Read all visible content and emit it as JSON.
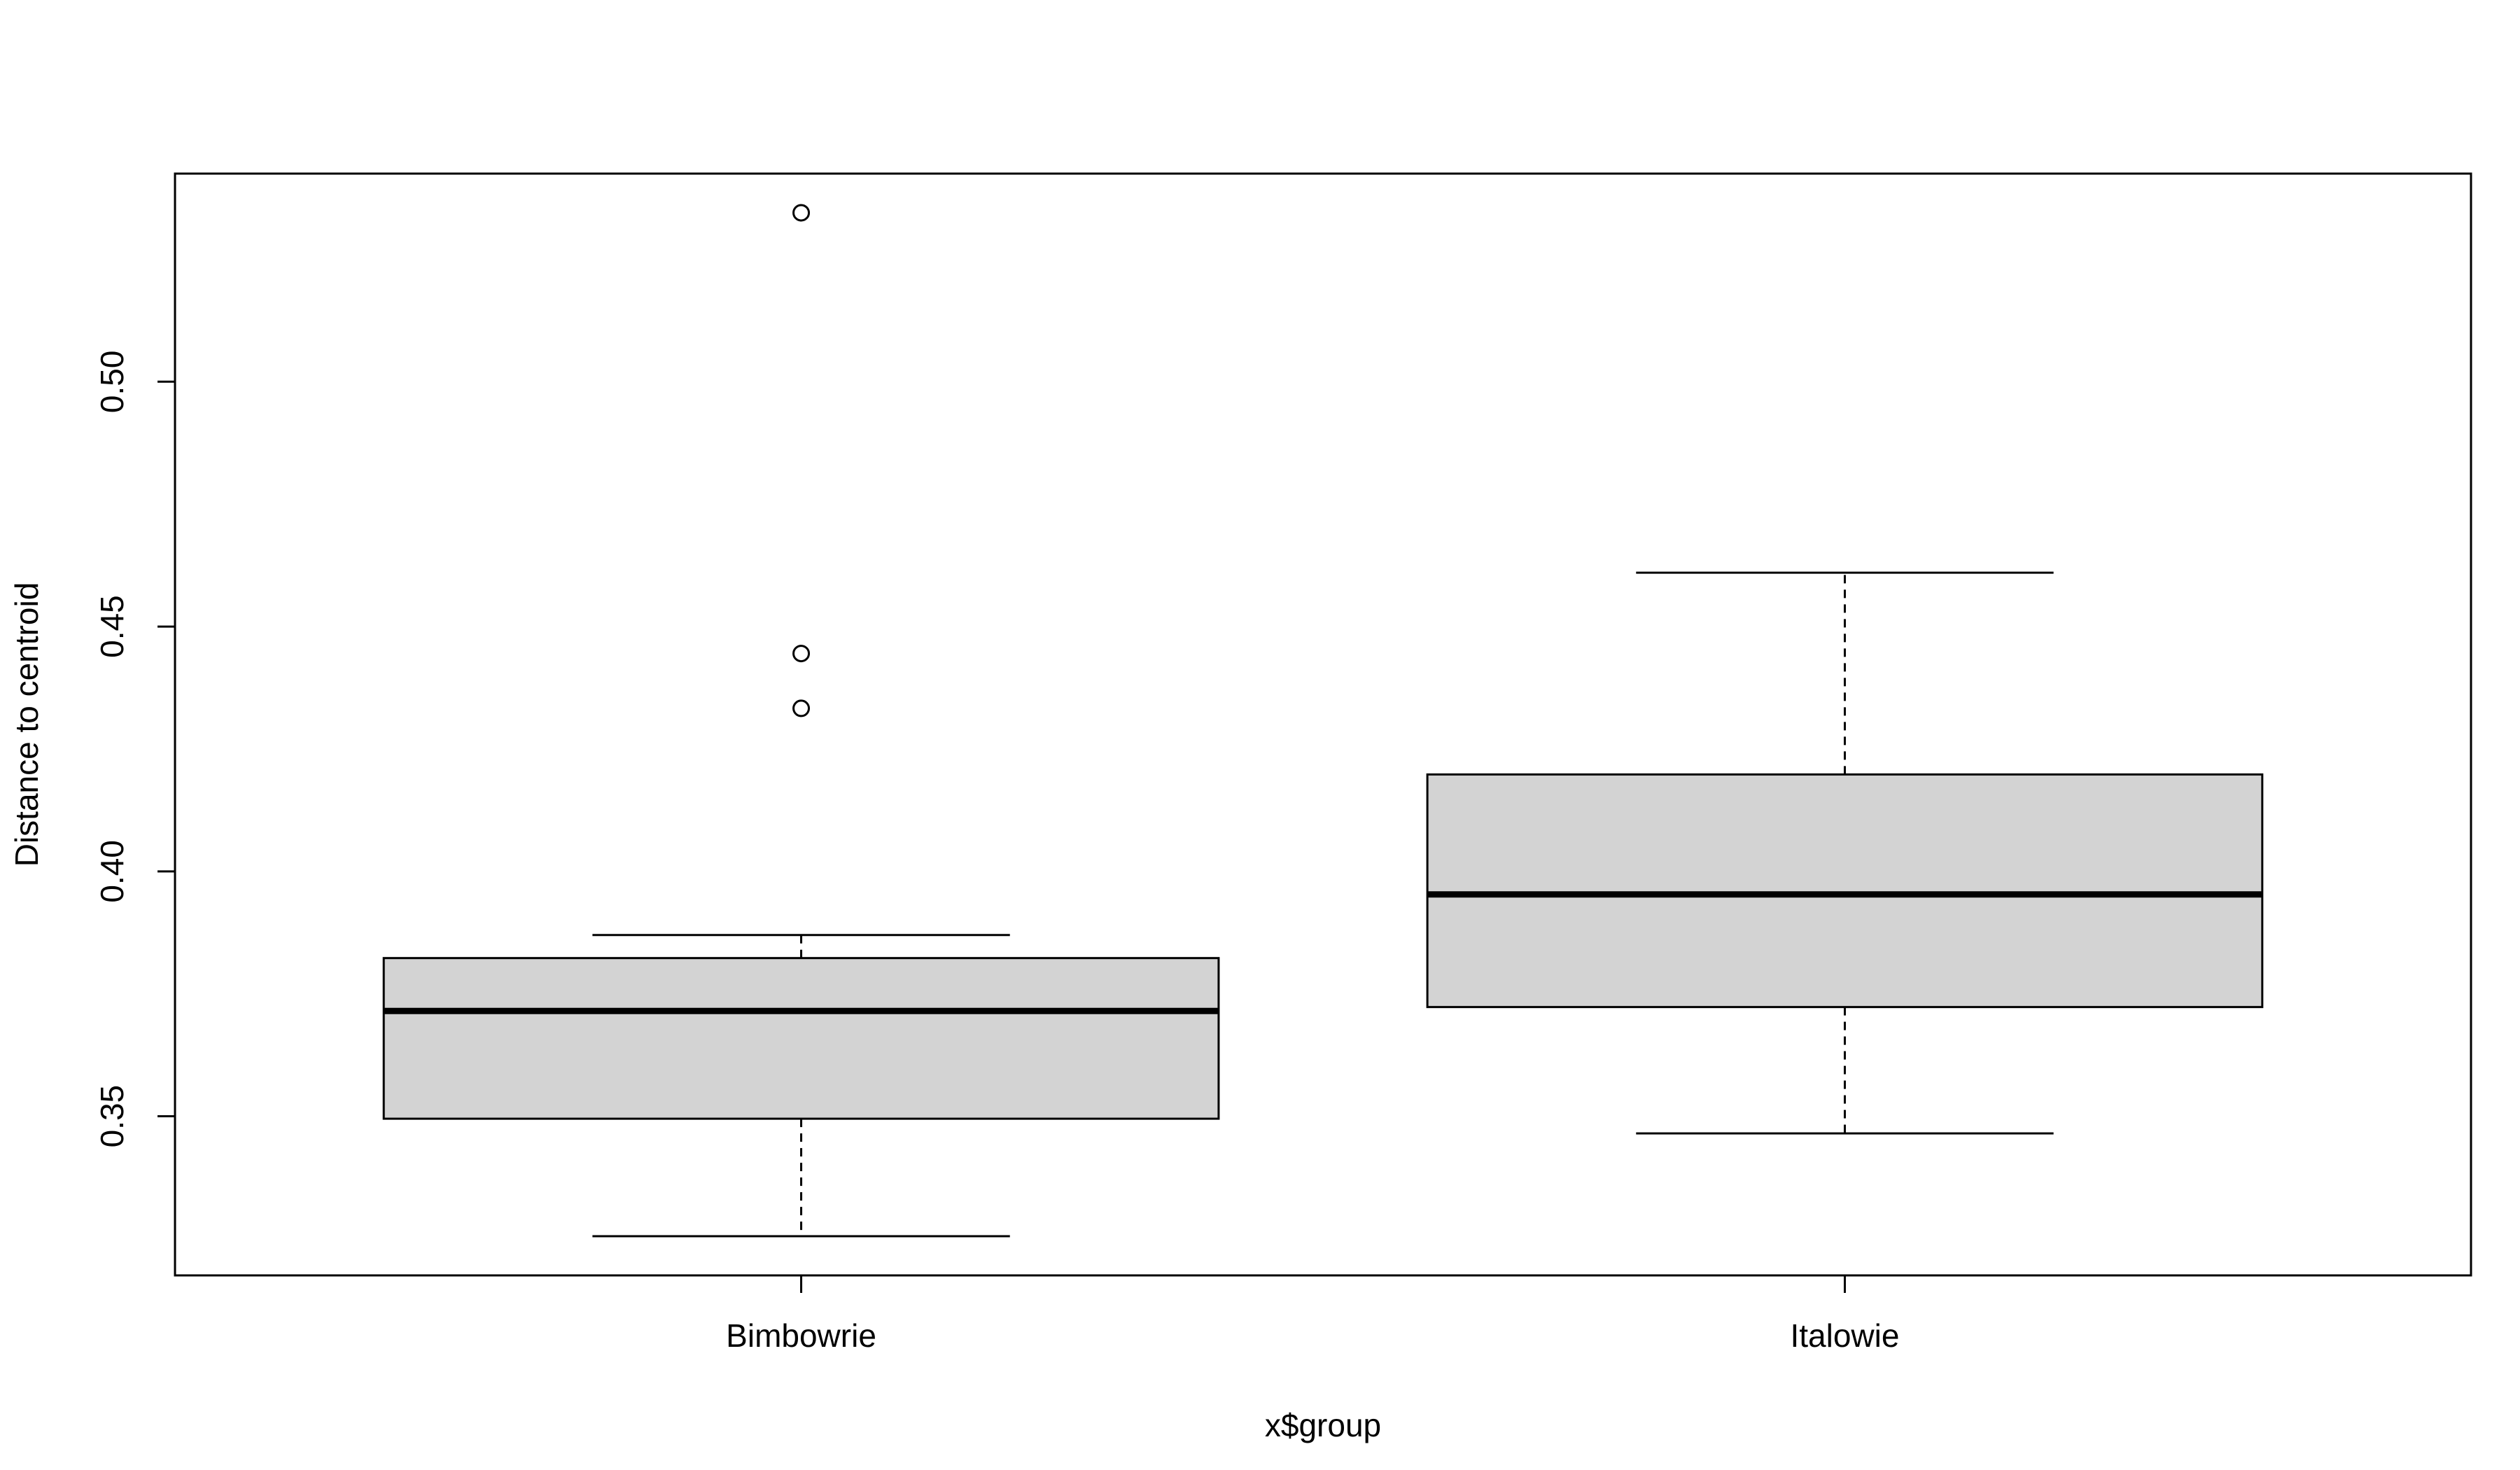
{
  "chart_data": {
    "type": "box",
    "title": "",
    "xlabel": "x$group",
    "ylabel": "Distance to centroid",
    "ylim": [
      0.3175,
      0.5425
    ],
    "yticks": [
      0.35,
      0.4,
      0.45,
      0.5
    ],
    "ytick_labels": [
      "0.35",
      "0.40",
      "0.45",
      "0.50"
    ],
    "categories": [
      "Bimbowrie",
      "Italowie"
    ],
    "grid": false,
    "box_fill": "#d3d3d3",
    "line_color": "#000000",
    "groups": [
      {
        "name": "Bimbowrie",
        "whisker_low": 0.3255,
        "q1": 0.3495,
        "median": 0.3715,
        "q3": 0.3823,
        "whisker_high": 0.387,
        "outliers": [
          0.5345,
          0.4445,
          0.4333
        ]
      },
      {
        "name": "Italowie",
        "whisker_low": 0.3465,
        "q1": 0.3723,
        "median": 0.3953,
        "q3": 0.4198,
        "whisker_high": 0.461,
        "outliers": []
      }
    ]
  }
}
